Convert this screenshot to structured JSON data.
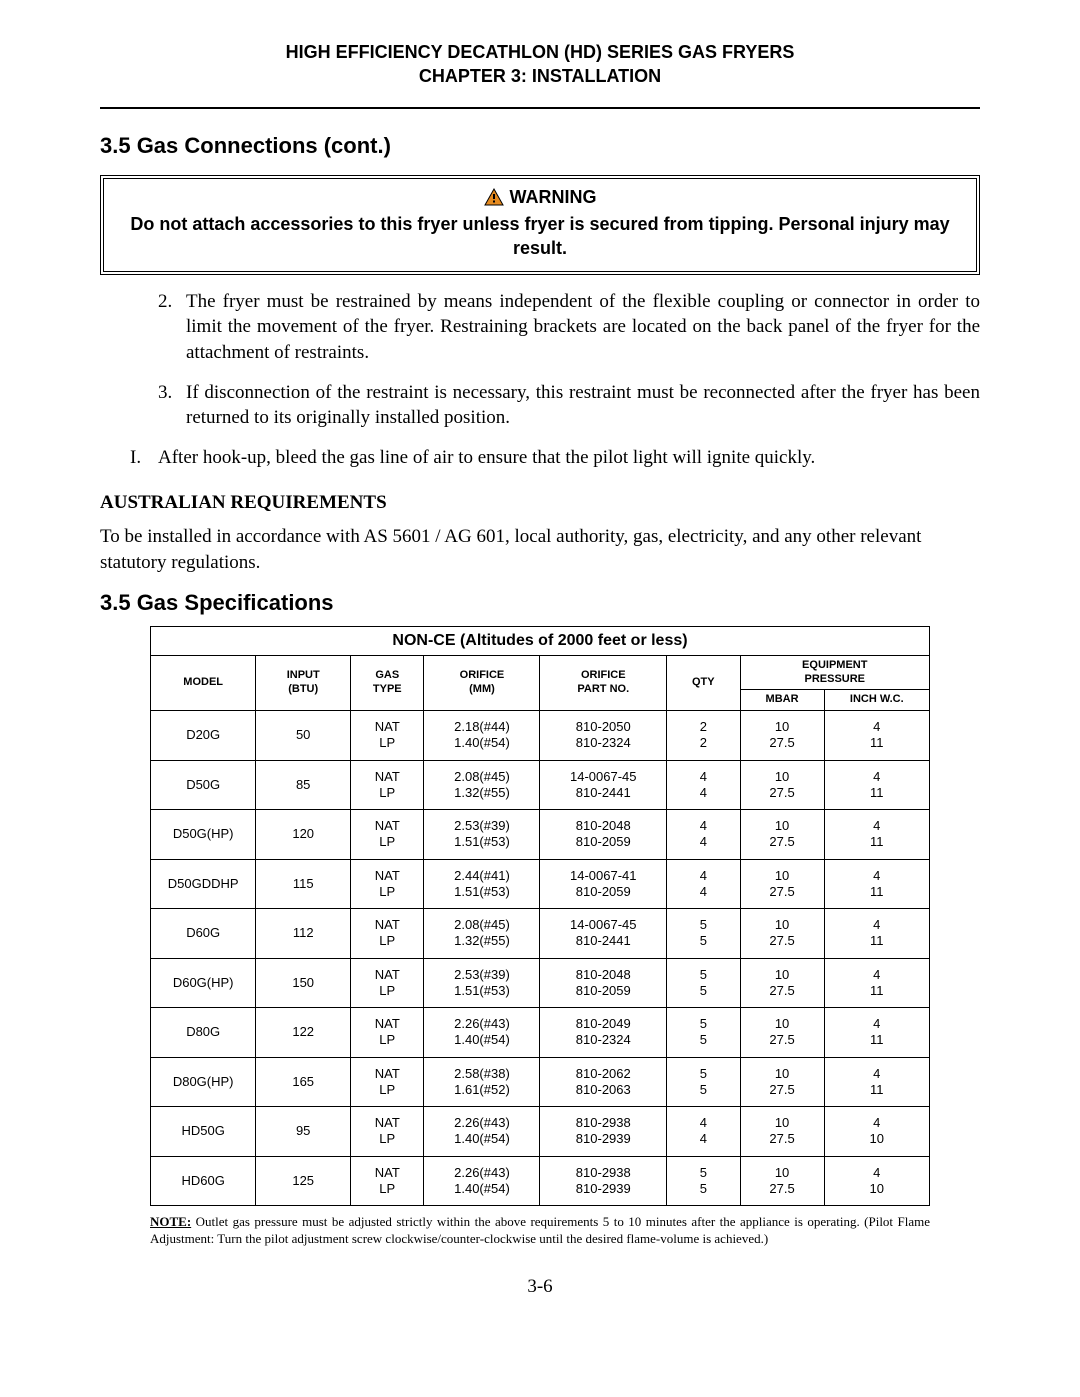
{
  "header": {
    "line1": "HIGH EFFICIENCY DECATHLON (HD) SERIES GAS FRYERS",
    "line2": "CHAPTER 3:  INSTALLATION"
  },
  "section_title_1": "3.5  Gas Connections (cont.)",
  "warning": {
    "label": "WARNING",
    "text": "Do not attach accessories to this fryer unless fryer is secured from tipping. Personal injury may result."
  },
  "list": {
    "item2_num": "2.",
    "item2_text": "The fryer must be restrained by means independent of the flexible coupling or connector in order to limit the movement of the fryer.  Restraining brackets are located on the back panel of the fryer for the attachment of restraints.",
    "item3_num": "3.",
    "item3_text": "If disconnection of the restraint is necessary, this restraint must be reconnected after the fryer has been returned to its originally installed position.",
    "itemI_num": "I.",
    "itemI_text": "After hook-up, bleed the gas line of air to ensure that the pilot light will ignite quickly."
  },
  "aus": {
    "heading": "AUSTRALIAN REQUIREMENTS",
    "para": "To be installed in accordance with AS 5601 / AG 601, local authority, gas, electricity, and any other relevant statutory regulations."
  },
  "section_title_2": "3.5  Gas Specifications",
  "table": {
    "title": "NON-CE (Altitudes of 2000 feet or less)",
    "headers": {
      "model": "MODEL",
      "input": "INPUT\n(BTU)",
      "gastype": "GAS\nTYPE",
      "orifice_mm": "ORIFICE\n(MM)",
      "orifice_part": "ORIFICE\nPART NO.",
      "qty": "QTY",
      "equip": "EQUIPMENT\nPRESSURE",
      "mbar": "MBAR",
      "inchwc": "INCH W.C."
    },
    "rows": [
      {
        "model": "D20G",
        "input": "50",
        "gas": "NAT\nLP",
        "orifice": "2.18(#44)\n1.40(#54)",
        "part": "810-2050\n810-2324",
        "qty": "2\n2",
        "mbar": "10\n27.5",
        "inch": "4\n11"
      },
      {
        "model": "D50G",
        "input": "85",
        "gas": "NAT\nLP",
        "orifice": "2.08(#45)\n1.32(#55)",
        "part": "14-0067-45\n810-2441",
        "qty": "4\n4",
        "mbar": "10\n27.5",
        "inch": "4\n11"
      },
      {
        "model": "D50G(HP)",
        "input": "120",
        "gas": "NAT\nLP",
        "orifice": "2.53(#39)\n1.51(#53)",
        "part": "810-2048\n810-2059",
        "qty": "4\n4",
        "mbar": "10\n27.5",
        "inch": "4\n11"
      },
      {
        "model": "D50GDDHP",
        "input": "115",
        "gas": "NAT\nLP",
        "orifice": "2.44(#41)\n1.51(#53)",
        "part": "14-0067-41\n810-2059",
        "qty": "4\n4",
        "mbar": "10\n27.5",
        "inch": "4\n11"
      },
      {
        "model": "D60G",
        "input": "112",
        "gas": "NAT\nLP",
        "orifice": "2.08(#45)\n1.32(#55)",
        "part": "14-0067-45\n810-2441",
        "qty": "5\n5",
        "mbar": "10\n27.5",
        "inch": "4\n11"
      },
      {
        "model": "D60G(HP)",
        "input": "150",
        "gas": "NAT\nLP",
        "orifice": "2.53(#39)\n1.51(#53)",
        "part": "810-2048\n810-2059",
        "qty": "5\n5",
        "mbar": "10\n27.5",
        "inch": "4\n11"
      },
      {
        "model": "D80G",
        "input": "122",
        "gas": "NAT\nLP",
        "orifice": "2.26(#43)\n1.40(#54)",
        "part": "810-2049\n810-2324",
        "qty": "5\n5",
        "mbar": "10\n27.5",
        "inch": "4\n11"
      },
      {
        "model": "D80G(HP)",
        "input": "165",
        "gas": "NAT\nLP",
        "orifice": "2.58(#38)\n1.61(#52)",
        "part": "810-2062\n810-2063",
        "qty": "5\n5",
        "mbar": "10\n27.5",
        "inch": "4\n11"
      },
      {
        "model": "HD50G",
        "input": "95",
        "gas": "NAT\nLP",
        "orifice": "2.26(#43)\n1.40(#54)",
        "part": "810-2938\n810-2939",
        "qty": "4\n4",
        "mbar": "10\n27.5",
        "inch": "4\n10"
      },
      {
        "model": "HD60G",
        "input": "125",
        "gas": "NAT\nLP",
        "orifice": "2.26(#43)\n1.40(#54)",
        "part": "810-2938\n810-2939",
        "qty": "5\n5",
        "mbar": "10\n27.5",
        "inch": "4\n10"
      }
    ]
  },
  "note": {
    "lead": "NOTE:",
    "text": "  Outlet gas pressure must be adjusted strictly within the above requirements 5 to 10 minutes after the appliance is operating. (Pilot Flame Adjustment: Turn the pilot adjustment screw clockwise/counter-clockwise until the desired flame-volume is achieved.)"
  },
  "page_number": "3-6",
  "colors": {
    "warn_triangle_fill": "#e58a1f",
    "warn_triangle_stroke": "#000000"
  }
}
